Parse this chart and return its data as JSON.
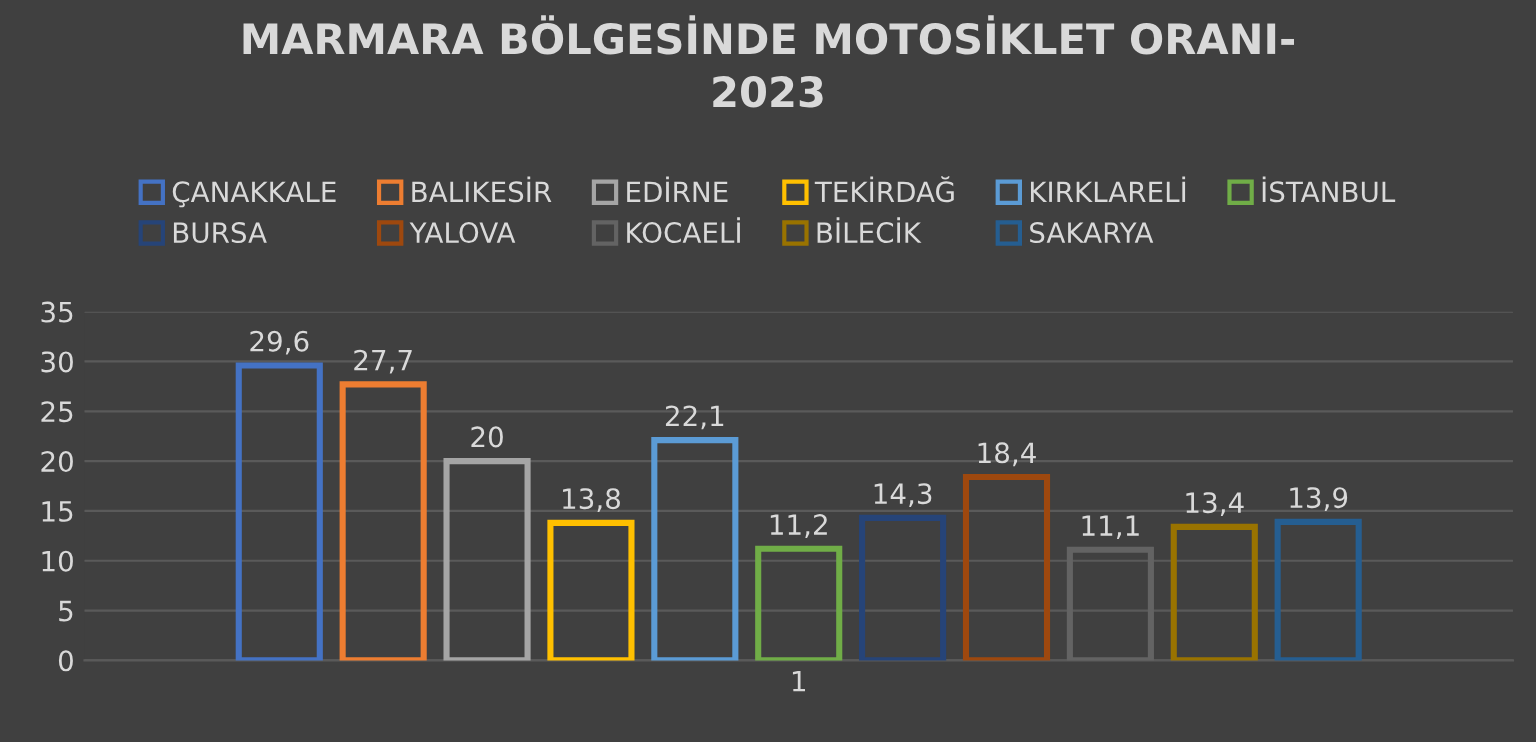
{
  "chart_data": {
    "type": "bar",
    "title": "MARMARA BÖLGESİNDE MOTOSİKLET ORANI-\n2023",
    "categories": [
      "1"
    ],
    "series": [
      {
        "name": "ÇANAKKALE",
        "color": "#4472c4",
        "values": [
          29.6
        ],
        "value_labels": [
          "29,6"
        ]
      },
      {
        "name": "BALIKESİR",
        "color": "#ed7d31",
        "values": [
          27.7
        ],
        "value_labels": [
          "27,7"
        ]
      },
      {
        "name": "EDİRNE",
        "color": "#a5a5a5",
        "values": [
          20
        ],
        "value_labels": [
          "20"
        ]
      },
      {
        "name": "TEKİRDAĞ",
        "color": "#ffc000",
        "values": [
          13.8
        ],
        "value_labels": [
          "13,8"
        ]
      },
      {
        "name": "KIRKLARELİ",
        "color": "#5b9bd5",
        "values": [
          22.1
        ],
        "value_labels": [
          "22,1"
        ]
      },
      {
        "name": "İSTANBUL",
        "color": "#70ad47",
        "values": [
          11.2
        ],
        "value_labels": [
          "11,2"
        ]
      },
      {
        "name": "BURSA",
        "color": "#264478",
        "values": [
          14.3
        ],
        "value_labels": [
          "14,3"
        ]
      },
      {
        "name": "YALOVA",
        "color": "#9e480e",
        "values": [
          18.4
        ],
        "value_labels": [
          "18,4"
        ]
      },
      {
        "name": "KOCAELİ",
        "color": "#636363",
        "values": [
          11.1
        ],
        "value_labels": [
          "11,1"
        ]
      },
      {
        "name": "BİLECİK",
        "color": "#997300",
        "values": [
          13.4
        ],
        "value_labels": [
          "13,4"
        ]
      },
      {
        "name": "SAKARYA",
        "color": "#255e91",
        "values": [
          13.9
        ],
        "value_labels": [
          "13,9"
        ]
      }
    ],
    "ylim": [
      0,
      35
    ],
    "yticks": [
      0,
      5,
      10,
      15,
      20,
      25,
      30,
      35
    ],
    "grid": "y",
    "legend": "top"
  }
}
